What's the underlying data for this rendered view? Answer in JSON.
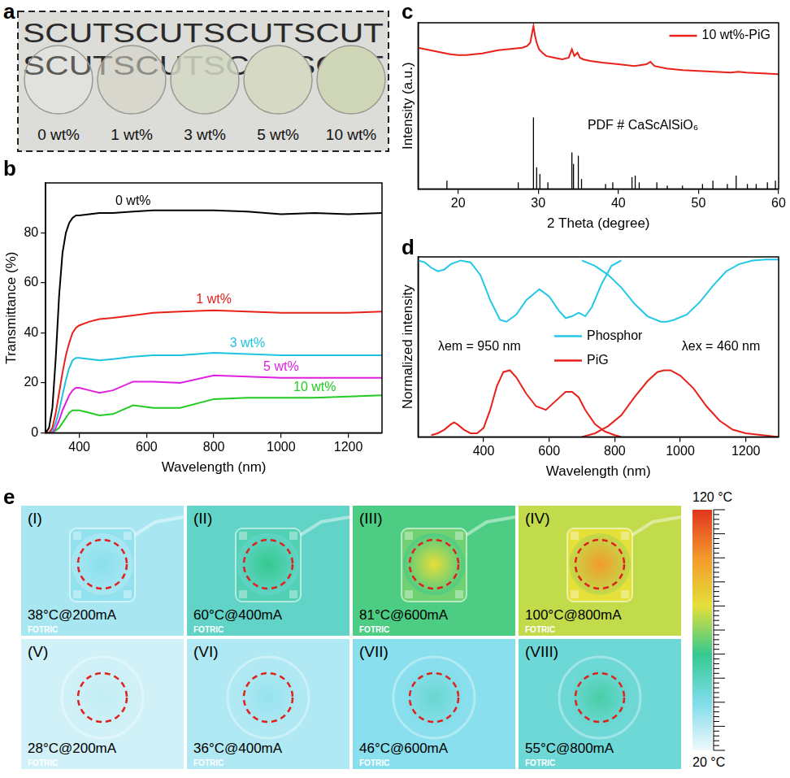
{
  "chart_data": [
    {
      "panel_label": "b",
      "type": "line",
      "x_label": "Wavelength (nm)",
      "y_label": "Transmittance (%)",
      "x": [
        300,
        310,
        320,
        330,
        340,
        350,
        360,
        370,
        380,
        390,
        400,
        430,
        460,
        500,
        560,
        620,
        700,
        800,
        900,
        1000,
        1100,
        1200,
        1300
      ],
      "series": [
        {
          "name": "0 wt%",
          "color": "#000000",
          "values": [
            0,
            2,
            10,
            30,
            55,
            72,
            80,
            84,
            86,
            87,
            87,
            87.5,
            88,
            88,
            88.5,
            89,
            89,
            89,
            88.5,
            87.5,
            88,
            87.5,
            88
          ]
        },
        {
          "name": "1 wt%",
          "color": "#e8211b",
          "values": [
            0,
            0,
            2,
            8,
            16,
            24,
            31,
            36,
            40,
            42,
            43,
            44.5,
            45.5,
            46,
            47,
            48,
            48.5,
            49,
            48.5,
            48,
            48,
            48,
            48.5
          ]
        },
        {
          "name": "3 wt%",
          "color": "#1fc3e0",
          "values": [
            0,
            0,
            1,
            4,
            9,
            15,
            21,
            26,
            29,
            30,
            30,
            29.5,
            29,
            29.5,
            30.5,
            31,
            31,
            32,
            31.5,
            31,
            31,
            31,
            31
          ]
        },
        {
          "name": "5 wt%",
          "color": "#e020e0",
          "values": [
            0,
            0,
            0,
            2,
            5,
            9,
            12,
            15,
            17,
            18,
            18,
            17,
            16,
            17,
            20.5,
            20.5,
            20,
            23,
            22.5,
            22,
            22,
            22,
            22
          ]
        },
        {
          "name": "10 wt%",
          "color": "#22cc22",
          "values": [
            0,
            0,
            0,
            1,
            2,
            4,
            6,
            8,
            9,
            9,
            9,
            8,
            7,
            7.5,
            11,
            10,
            10,
            13.5,
            14,
            14,
            14,
            14.5,
            15
          ]
        }
      ],
      "xlim": [
        300,
        1300
      ],
      "xticks": [
        400,
        600,
        800,
        1000,
        1200
      ],
      "ylim": [
        0,
        100
      ],
      "yticks": [
        0,
        20,
        40,
        60,
        80
      ],
      "grid": false
    },
    {
      "panel_label": "c",
      "type": "line",
      "x_label": "2 Theta (degree)",
      "y_label": "Intensity (a.u.)",
      "xlim": [
        15,
        60
      ],
      "xticks": [
        20,
        30,
        40,
        50,
        60
      ],
      "ylim": [
        0,
        100
      ],
      "tick_labels": "x",
      "grid": false,
      "legend": "upper right",
      "series": [
        {
          "name": "10 wt%-PiG",
          "color": "#e8211b",
          "x": [
            15,
            16,
            17,
            18,
            19,
            20,
            21,
            22,
            23,
            24,
            25,
            26,
            27,
            28,
            28.6,
            29.0,
            29.2,
            29.4,
            29.6,
            29.8,
            30.1,
            30.5,
            31,
            32,
            33,
            33.8,
            34.2,
            34.5,
            34.9,
            35.2,
            35.6,
            36.5,
            38,
            40,
            42,
            43.5,
            44,
            44.5,
            46,
            48,
            50,
            52,
            54,
            55,
            56,
            58,
            60
          ],
          "values": [
            85,
            84,
            83,
            82,
            81,
            80.5,
            80.5,
            81,
            81.5,
            82.5,
            83.5,
            84,
            84.5,
            85,
            86,
            88,
            93,
            98,
            92,
            88,
            84,
            82,
            80,
            79,
            78,
            79,
            84,
            80,
            82,
            79,
            78,
            77,
            76,
            75,
            74,
            75,
            76.5,
            74,
            72.5,
            71.5,
            71,
            70.5,
            70,
            70.5,
            70,
            69.5,
            69
          ]
        },
        {
          "name": "PDF # CaScAlSiO₆",
          "type": "stick",
          "color": "#000000",
          "x": [
            18.6,
            27.5,
            29.4,
            29.8,
            30.2,
            31.2,
            34.2,
            34.4,
            35.0,
            35.4,
            38.4,
            39.3,
            41.7,
            42.1,
            42.6,
            44.8,
            46.1,
            48.0,
            50.5,
            51.8,
            53.6,
            54.7,
            56.1,
            57.2,
            58.6,
            59.6
          ],
          "values": [
            5,
            4,
            43,
            13,
            9,
            4,
            22,
            15,
            20,
            6,
            3,
            4,
            7,
            8,
            4,
            4,
            2,
            2,
            3,
            5,
            3,
            8,
            3,
            3,
            4,
            5
          ]
        }
      ]
    },
    {
      "panel_label": "d",
      "type": "line",
      "x_label": "Wavelength (nm)",
      "y_label": "Normalized intensity",
      "xlim": [
        200,
        1300
      ],
      "xticks": [
        400,
        600,
        800,
        1000,
        1200
      ],
      "ylim": [
        0,
        1
      ],
      "tick_labels": "x",
      "grid": false,
      "legend": "center",
      "annotations": [
        "λem = 950 nm",
        "λex = 460 nm"
      ],
      "series": [
        {
          "name": "Phosphor",
          "color": "#22c8e6",
          "x": [
            200,
            220,
            240,
            260,
            280,
            300,
            330,
            360,
            390,
            420,
            450,
            470,
            500,
            530,
            570,
            600,
            630,
            650,
            670,
            690,
            710,
            730,
            760,
            790,
            820
          ],
          "values": [
            0.98,
            0.97,
            0.94,
            0.92,
            0.93,
            0.96,
            0.98,
            0.97,
            0.9,
            0.76,
            0.65,
            0.64,
            0.68,
            0.76,
            0.82,
            0.78,
            0.7,
            0.66,
            0.67,
            0.69,
            0.67,
            0.72,
            0.85,
            0.95,
            0.98
          ]
        },
        {
          "name": "Phosphor",
          "color": "#22c8e6",
          "x": [
            700,
            740,
            780,
            820,
            860,
            900,
            940,
            960,
            980,
            1020,
            1060,
            1100,
            1140,
            1180,
            1220,
            1260,
            1300
          ],
          "values": [
            0.98,
            0.95,
            0.9,
            0.83,
            0.74,
            0.67,
            0.64,
            0.64,
            0.65,
            0.68,
            0.75,
            0.84,
            0.92,
            0.96,
            0.98,
            0.985,
            0.985
          ]
        },
        {
          "name": "PiG",
          "color": "#e8211b",
          "x": [
            240,
            260,
            280,
            300,
            310,
            320,
            340,
            360,
            380,
            400,
            420,
            440,
            460,
            480,
            500,
            530,
            560,
            590,
            620,
            650,
            670,
            690,
            710,
            740,
            770,
            800,
            820
          ],
          "values": [
            0.01,
            0.02,
            0.04,
            0.07,
            0.08,
            0.07,
            0.04,
            0.02,
            0.02,
            0.05,
            0.15,
            0.28,
            0.36,
            0.37,
            0.33,
            0.24,
            0.17,
            0.15,
            0.2,
            0.25,
            0.25,
            0.22,
            0.15,
            0.07,
            0.03,
            0.01,
            0.0
          ]
        },
        {
          "name": "PiG",
          "color": "#e8211b",
          "x": [
            700,
            740,
            780,
            820,
            860,
            900,
            930,
            950,
            970,
            1000,
            1040,
            1080,
            1120,
            1160,
            1200,
            1250,
            1300
          ],
          "values": [
            0.0,
            0.02,
            0.06,
            0.12,
            0.22,
            0.31,
            0.36,
            0.37,
            0.37,
            0.34,
            0.27,
            0.17,
            0.09,
            0.04,
            0.02,
            0.01,
            0.0
          ]
        }
      ]
    }
  ],
  "panels": {
    "a": {
      "panel_label": "a",
      "background_text": [
        "SCUTSCUTSCUTSCUT",
        "SCUTSCUTSCUTSCUT"
      ],
      "samples": [
        {
          "label": "0 wt%",
          "color": "rgba(240,240,236,0.25)"
        },
        {
          "label": "1 wt%",
          "color": "rgba(212,212,198,0.6)"
        },
        {
          "label": "3 wt%",
          "color": "rgba(212,216,198,0.85)"
        },
        {
          "label": "5 wt%",
          "color": "#d6dac4"
        },
        {
          "label": "10 wt%",
          "color": "#cfd6b8"
        }
      ]
    },
    "e": {
      "panel_label": "e",
      "watermark": "FOTRIC",
      "tiles": [
        {
          "label": "(I)",
          "text": "38°C@200mA",
          "temperature": 38
        },
        {
          "label": "(II)",
          "text": "60°C@400mA",
          "temperature": 60
        },
        {
          "label": "(III)",
          "text": "81°C@600mA",
          "temperature": 81
        },
        {
          "label": "(IV)",
          "text": "100°C@800mA",
          "temperature": 100
        },
        {
          "label": "(V)",
          "text": "28°C@200mA",
          "temperature": 28
        },
        {
          "label": "(VI)",
          "text": "36°C@400mA",
          "temperature": 36
        },
        {
          "label": "(VII)",
          "text": "46°C@600mA",
          "temperature": 46
        },
        {
          "label": "(VIII)",
          "text": "55°C@800mA",
          "temperature": 55
        }
      ],
      "colorbar": {
        "range": [
          20,
          120
        ],
        "ticks": [
          {
            "value": 120,
            "label": "120 °C"
          },
          {
            "value": 20,
            "label": "20 °C"
          }
        ],
        "colors": [
          "#eef9fb",
          "#7fdcec",
          "#35c98f",
          "#e5e03a",
          "#f39a2b",
          "#e2341f"
        ]
      }
    }
  }
}
